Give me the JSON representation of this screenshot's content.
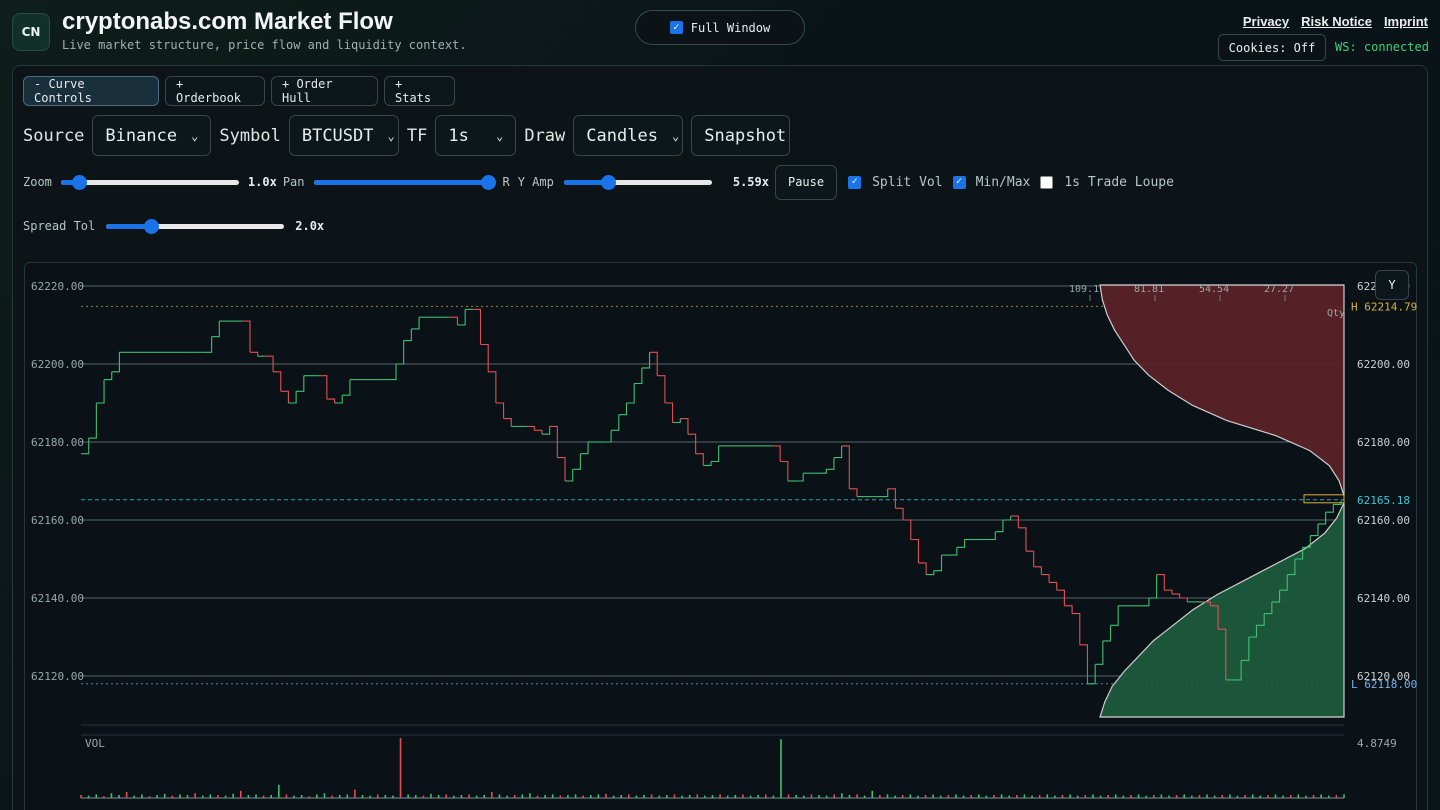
{
  "header": {
    "logo": "CN",
    "title": "cryptonabs.com Market Flow",
    "subtitle": "Live market structure, price flow and liquidity context.",
    "full_window_label": "Full Window",
    "links": [
      "Privacy",
      "Risk Notice",
      "Imprint"
    ],
    "cookies": "Cookies: Off",
    "ws_status": "WS: connected",
    "ws_color": "#3ed07a"
  },
  "tabs": [
    "- Curve Controls",
    "+ Orderbook",
    "+ Order Hull",
    "+ Stats"
  ],
  "controls": {
    "source_label": "Source",
    "source_value": "Binance",
    "symbol_label": "Symbol",
    "symbol_value": "BTCUSDT",
    "tf_label": "TF",
    "tf_value": "1s",
    "draw_label": "Draw",
    "draw_value": "Candles",
    "snapshot": "Snapshot",
    "zoom_label": "Zoom",
    "zoom_value": "1.0x",
    "zoom_level": 0.1,
    "pan_label": "Pan",
    "pan_value": "R",
    "pan_level": 0.98,
    "yamp_label": "Y Amp",
    "yamp_value": "5.59x",
    "yamp_level": 0.3,
    "pause": "Pause",
    "split_vol": "Split Vol",
    "split_vol_checked": true,
    "minmax": "Min/Max",
    "minmax_checked": true,
    "loupe": "1s Trade Loupe",
    "loupe_checked": false,
    "spread_label": "Spread Tol",
    "spread_value": "2.0x",
    "spread_level": 0.25
  },
  "chart": {
    "y_button": "Y",
    "gridlines": [
      62220,
      62200,
      62180,
      62160,
      62140,
      62120
    ],
    "left_labels": [
      "62220.00",
      "62200.00",
      "62180.00",
      "62160.00",
      "62140.00",
      "62120.00"
    ],
    "right_labels": [
      "62220.00",
      "62200.00",
      "62180.00",
      "62160.00",
      "62140.00",
      "62120.00"
    ],
    "high_label": "H 62214.79",
    "high_value": 62214.79,
    "low_label": "L 62118.00",
    "low_value": 62118.0,
    "current_label": "62165.18",
    "current_value": 62165.18,
    "qty_ticks": [
      "109.1",
      "81.81",
      "54.54",
      "27.27"
    ],
    "qty_label": "Qty",
    "vol_label": "VOL",
    "vol_max": "4.8749",
    "colors": {
      "up": "#3ec070",
      "down": "#e05050",
      "bid": "#1e5a3c",
      "ask": "#5a2228",
      "cur": "#3ac8d8",
      "high": "#d8b040",
      "low": "#7ab0e8"
    }
  },
  "chart_data": {
    "type": "line",
    "title": "",
    "ylim": [
      62110,
      62220
    ],
    "price": [
      62177,
      62181,
      62190,
      62196,
      62198,
      62203,
      62203,
      62203,
      62203,
      62203,
      62203,
      62203,
      62203,
      62203,
      62203,
      62203,
      62203,
      62207,
      62211,
      62211,
      62211,
      62211,
      62203,
      62202,
      62202,
      62198,
      62193,
      62190,
      62193,
      62197,
      62197,
      62197,
      62191,
      62190,
      62192,
      62196,
      62196,
      62196,
      62196,
      62196,
      62196,
      62200,
      62206,
      62209,
      62212,
      62212,
      62212,
      62212,
      62212,
      62210,
      62214,
      62214,
      62205,
      62198,
      62190,
      62186,
      62184,
      62184,
      62184,
      62183,
      62182,
      62184,
      62176,
      62170,
      62173,
      62177,
      62180,
      62180,
      62180,
      62183,
      62187,
      62190,
      62195,
      62199,
      62203,
      62197,
      62190,
      62185,
      62186,
      62182,
      62177,
      62174,
      62175,
      62179,
      62179,
      62179,
      62179,
      62179,
      62179,
      62179,
      62179,
      62175,
      62170,
      62170,
      62172,
      62172,
      62172,
      62173,
      62176,
      62179,
      62168,
      62166,
      62166,
      62166,
      62166,
      62168,
      62163,
      62160,
      62155,
      62149,
      62146,
      62147,
      62151,
      62151,
      62153,
      62155,
      62155,
      62155,
      62155,
      62157,
      62160,
      62161,
      62158,
      62152,
      62148,
      62146,
      62144,
      62142,
      62138,
      62136,
      62128,
      62118,
      62123,
      62129,
      62133,
      62138,
      62138,
      62138,
      62138,
      62140,
      62146,
      62142,
      62141,
      62140,
      62139,
      62139,
      62139,
      62138,
      62132,
      62119,
      62119,
      62124,
      62130,
      62133,
      62136,
      62139,
      62142,
      62146,
      62150,
      62153,
      62156,
      62159,
      62162,
      62164,
      62165
    ],
    "ask_depth": [
      0.0,
      0.02,
      0.06,
      0.14,
      0.28,
      0.48,
      0.62,
      0.72,
      0.8,
      0.86,
      0.9,
      0.94,
      0.97,
      0.99,
      1.0
    ],
    "bid_depth": [
      0.0,
      0.03,
      0.08,
      0.16,
      0.28,
      0.4,
      0.52,
      0.62,
      0.7,
      0.78,
      0.84,
      0.9,
      0.95,
      0.98,
      1.0
    ],
    "volume": [
      0.05,
      0.04,
      0.06,
      0.03,
      0.08,
      0.05,
      0.1,
      0.04,
      0.06,
      0.03,
      0.05,
      0.07,
      0.04,
      0.06,
      0.05,
      0.08,
      0.04,
      0.06,
      0.05,
      0.04,
      0.07,
      0.12,
      0.05,
      0.06,
      0.04,
      0.05,
      0.22,
      0.06,
      0.04,
      0.05,
      0.03,
      0.06,
      0.08,
      0.04,
      0.05,
      0.06,
      0.14,
      0.05,
      0.04,
      0.06,
      0.05,
      0.04,
      1.0,
      0.06,
      0.05,
      0.04,
      0.07,
      0.05,
      0.06,
      0.04,
      0.05,
      0.06,
      0.04,
      0.05,
      0.1,
      0.06,
      0.04,
      0.05,
      0.06,
      0.08,
      0.04,
      0.05,
      0.06,
      0.04,
      0.05,
      0.06,
      0.04,
      0.05,
      0.06,
      0.07,
      0.04,
      0.05,
      0.06,
      0.04,
      0.05,
      0.06,
      0.04,
      0.05,
      0.06,
      0.04,
      0.05,
      0.06,
      0.04,
      0.05,
      0.06,
      0.04,
      0.05,
      0.06,
      0.04,
      0.05,
      0.06,
      0.04,
      0.98,
      0.06,
      0.05,
      0.04,
      0.06,
      0.05,
      0.04,
      0.06,
      0.08,
      0.05,
      0.06,
      0.04,
      0.12,
      0.05,
      0.06,
      0.04,
      0.05,
      0.06,
      0.04,
      0.05,
      0.06,
      0.04,
      0.05,
      0.06,
      0.04,
      0.05,
      0.06,
      0.04,
      0.05,
      0.06,
      0.04,
      0.05,
      0.06,
      0.04,
      0.05,
      0.06,
      0.04,
      0.05,
      0.06,
      0.04,
      0.05,
      0.06,
      0.04,
      0.05,
      0.06,
      0.04,
      0.05,
      0.06,
      0.04,
      0.05,
      0.06,
      0.04,
      0.05,
      0.06,
      0.04,
      0.05,
      0.06,
      0.04,
      0.05,
      0.06,
      0.04,
      0.05,
      0.06,
      0.04,
      0.05,
      0.06,
      0.04,
      0.05,
      0.06,
      0.04,
      0.05,
      0.06,
      0.04,
      0.05,
      0.06
    ]
  }
}
